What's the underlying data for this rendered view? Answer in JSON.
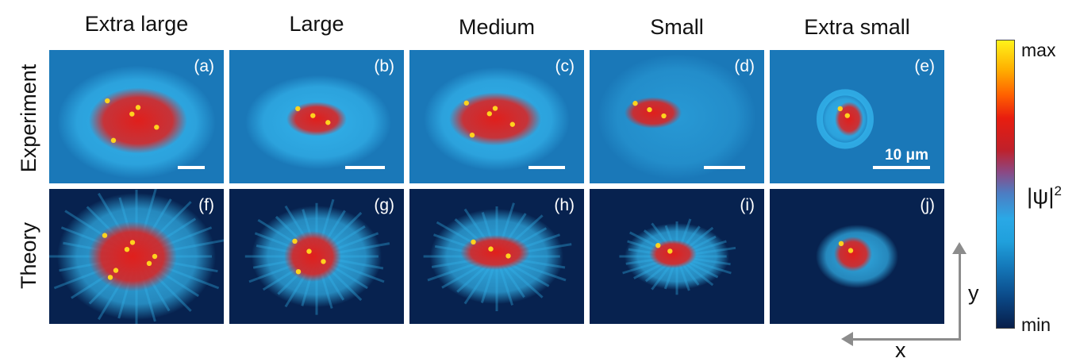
{
  "columns": [
    "Extra large",
    "Large",
    "Medium",
    "Small",
    "Extra small"
  ],
  "rows": [
    "Experiment",
    "Theory"
  ],
  "panel_labels": {
    "experiment": [
      "(a)",
      "(b)",
      "(c)",
      "(d)",
      "(e)"
    ],
    "theory": [
      "(f)",
      "(g)",
      "(h)",
      "(i)",
      "(j)"
    ]
  },
  "scale_bar_text": "10 μm",
  "colorbar": {
    "max_label": "max",
    "min_label": "min",
    "quantity_label": "|ψ|",
    "quantity_exponent": "2",
    "colors": [
      "#fff21a",
      "#ff6000",
      "#e81d0f",
      "#8a4a86",
      "#2aa8e6",
      "#0b4a89",
      "#071e4a"
    ]
  },
  "axes": {
    "x_label": "x",
    "y_label": "y"
  },
  "colors": {
    "experiment_background": "#1a78b8",
    "theory_background": "#07224f",
    "halo": "#33b4ec",
    "core": "#e01f1c",
    "peak": "#ffd21e",
    "arrow": "#8c8c8c"
  }
}
